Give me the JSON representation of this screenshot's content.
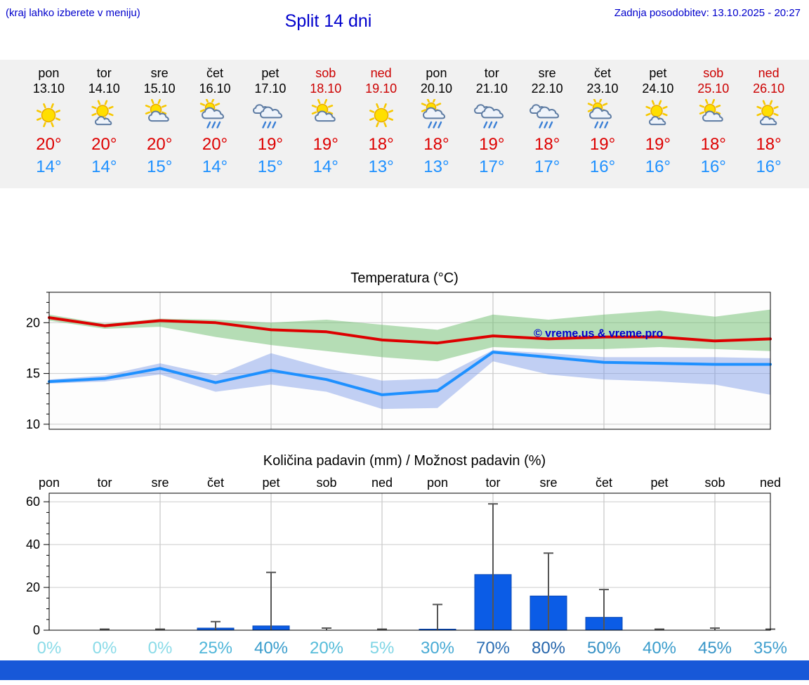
{
  "header": {
    "hint": "(kraj lahko izberete v meniju)",
    "title": "Split 14 dni",
    "last_update": "Zadnja posodobitev: 13.10.2025 - 20:27"
  },
  "colors": {
    "link_blue": "#0000cc",
    "temp_max": "#dd0000",
    "temp_min": "#1e90ff",
    "weekend_red": "#cc0000",
    "bottom_bar": "#1758d8"
  },
  "forecast": {
    "days": [
      {
        "name": "pon",
        "date": "13.10",
        "weekend": false,
        "icon": "sun",
        "tmax": "20°",
        "tmin": "14°"
      },
      {
        "name": "tor",
        "date": "14.10",
        "weekend": false,
        "icon": "sun-cloud-small",
        "tmax": "20°",
        "tmin": "14°"
      },
      {
        "name": "sre",
        "date": "15.10",
        "weekend": false,
        "icon": "sun-cloud",
        "tmax": "20°",
        "tmin": "15°"
      },
      {
        "name": "čet",
        "date": "16.10",
        "weekend": false,
        "icon": "sun-cloud-rain",
        "tmax": "20°",
        "tmin": "14°"
      },
      {
        "name": "pet",
        "date": "17.10",
        "weekend": false,
        "icon": "clouds-rain",
        "tmax": "19°",
        "tmin": "15°"
      },
      {
        "name": "sob",
        "date": "18.10",
        "weekend": true,
        "icon": "sun-cloud",
        "tmax": "19°",
        "tmin": "14°"
      },
      {
        "name": "ned",
        "date": "19.10",
        "weekend": true,
        "icon": "sun",
        "tmax": "18°",
        "tmin": "13°"
      },
      {
        "name": "pon",
        "date": "20.10",
        "weekend": false,
        "icon": "sun-cloud-rain",
        "tmax": "18°",
        "tmin": "13°"
      },
      {
        "name": "tor",
        "date": "21.10",
        "weekend": false,
        "icon": "clouds-rain",
        "tmax": "19°",
        "tmin": "17°"
      },
      {
        "name": "sre",
        "date": "22.10",
        "weekend": false,
        "icon": "clouds-rain",
        "tmax": "18°",
        "tmin": "17°"
      },
      {
        "name": "čet",
        "date": "23.10",
        "weekend": false,
        "icon": "sun-cloud-rain",
        "tmax": "19°",
        "tmin": "16°"
      },
      {
        "name": "pet",
        "date": "24.10",
        "weekend": false,
        "icon": "sun-cloud-small",
        "tmax": "19°",
        "tmin": "16°"
      },
      {
        "name": "sob",
        "date": "25.10",
        "weekend": true,
        "icon": "sun-cloud",
        "tmax": "18°",
        "tmin": "16°"
      },
      {
        "name": "ned",
        "date": "26.10",
        "weekend": true,
        "icon": "sun-cloud-small",
        "tmax": "18°",
        "tmin": "16°"
      }
    ]
  },
  "chart_data": [
    {
      "type": "line",
      "title": "Temperatura (°C)",
      "x_days": [
        "pon",
        "tor",
        "sre",
        "čet",
        "pet",
        "sob",
        "ned",
        "pon",
        "tor",
        "sre",
        "čet",
        "pet",
        "sob",
        "ned"
      ],
      "series": [
        {
          "name": "max temperature",
          "color": "#dd0000",
          "values": [
            20.5,
            19.7,
            20.2,
            20.0,
            19.3,
            19.1,
            18.3,
            18.0,
            18.7,
            18.4,
            18.6,
            18.6,
            18.2,
            18.4
          ]
        },
        {
          "name": "min temperature",
          "color": "#1e90ff",
          "values": [
            14.2,
            14.5,
            15.5,
            14.1,
            15.3,
            14.4,
            12.9,
            13.3,
            17.1,
            16.6,
            16.1,
            16.0,
            15.9,
            15.9
          ]
        }
      ],
      "bands": [
        {
          "name": "max range",
          "color": "rgba(110,190,110,0.5)",
          "upper": [
            20.8,
            19.9,
            20.4,
            20.3,
            20.0,
            20.3,
            19.8,
            19.3,
            20.8,
            20.3,
            20.8,
            21.2,
            20.6,
            21.3
          ],
          "lower": [
            20.2,
            19.4,
            19.6,
            18.6,
            17.8,
            17.2,
            16.6,
            16.2,
            17.6,
            17.4,
            17.4,
            17.6,
            17.4,
            17.2
          ]
        },
        {
          "name": "min range",
          "color": "rgba(120,150,230,0.45)",
          "upper": [
            14.4,
            14.8,
            16.0,
            14.8,
            17.0,
            15.5,
            14.3,
            14.5,
            17.3,
            17.0,
            16.6,
            16.6,
            16.6,
            16.5
          ],
          "lower": [
            14.0,
            14.2,
            14.9,
            13.2,
            13.9,
            13.2,
            11.5,
            11.6,
            16.2,
            14.9,
            14.4,
            14.2,
            13.9,
            12.9
          ]
        }
      ],
      "yticks": [
        10,
        15,
        20
      ],
      "ylim": [
        9.5,
        23
      ],
      "grid": true,
      "watermark": "© vreme.us & vreme.pro"
    },
    {
      "type": "bar",
      "title": "Količina padavin (mm) / Možnost padavin (%)",
      "categories": [
        "pon",
        "tor",
        "sre",
        "čet",
        "pet",
        "sob",
        "ned",
        "pon",
        "tor",
        "sre",
        "čet",
        "pet",
        "sob",
        "ned"
      ],
      "values": [
        0,
        0,
        0,
        1,
        2,
        0,
        0,
        0.5,
        26,
        16,
        6,
        0,
        0,
        0
      ],
      "error_max": [
        0,
        0.5,
        0.5,
        4,
        27,
        1,
        0.5,
        12,
        59,
        36,
        19,
        0.5,
        1,
        0.5
      ],
      "percent_labels": [
        "0%",
        "0%",
        "0%",
        "25%",
        "40%",
        "20%",
        "5%",
        "30%",
        "70%",
        "80%",
        "50%",
        "40%",
        "45%",
        "35%"
      ],
      "percent_colors": [
        "#8adbe8",
        "#8adbe8",
        "#8adbe8",
        "#4fb6d9",
        "#3a9dcc",
        "#55bcd9",
        "#7fd5e5",
        "#47aad4",
        "#2a6db3",
        "#2565ab",
        "#3590c4",
        "#3a9dcc",
        "#3795c7",
        "#409fce"
      ],
      "bar_color": "#0b5ce6",
      "yticks": [
        0,
        20,
        40,
        60
      ],
      "ylim": [
        0,
        64
      ],
      "grid": true
    }
  ]
}
